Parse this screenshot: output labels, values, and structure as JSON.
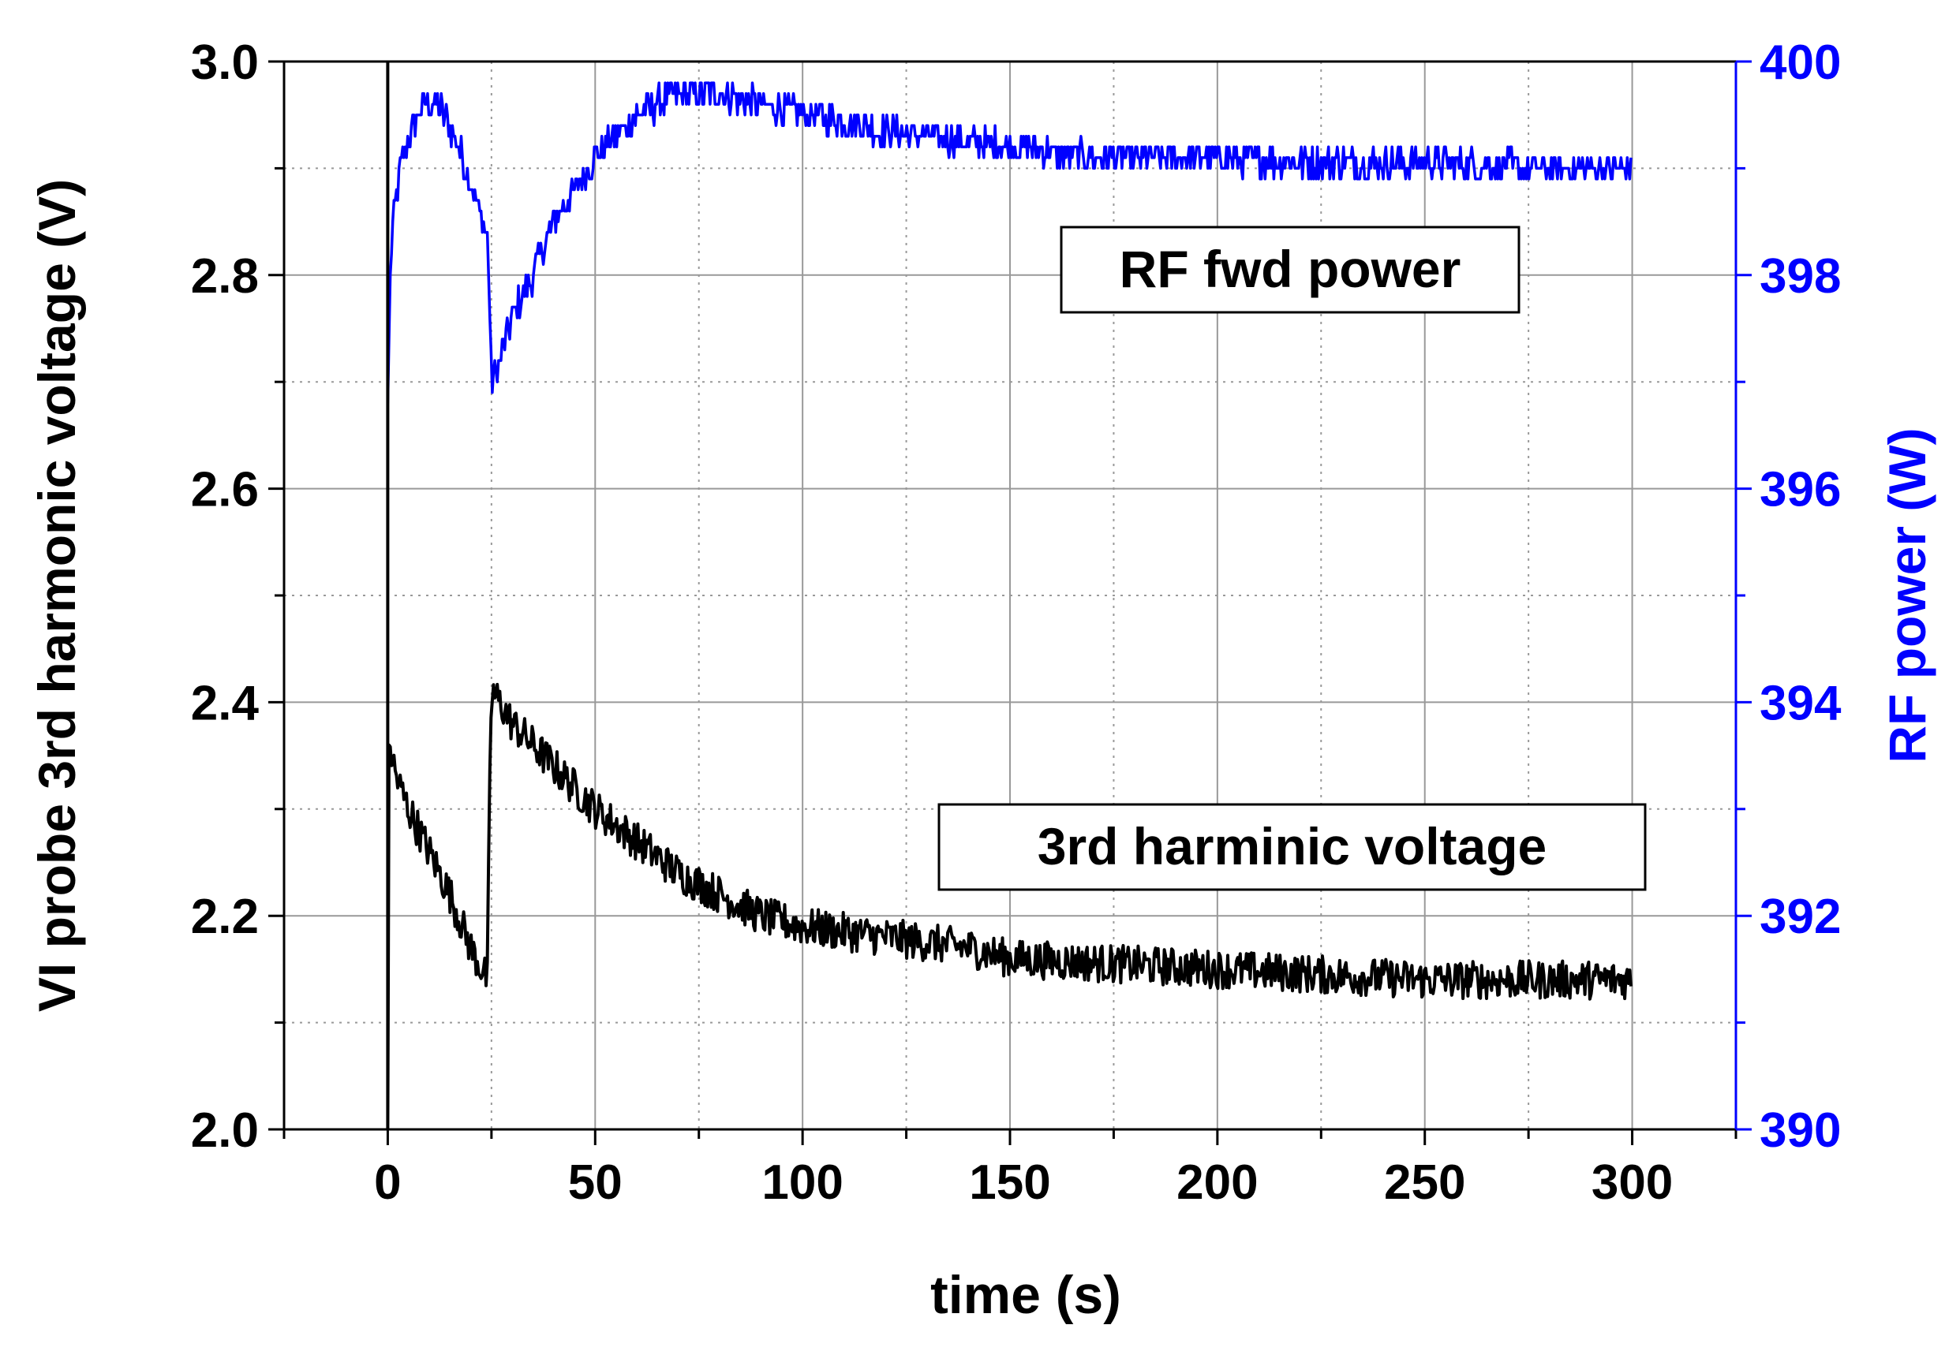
{
  "chart_data": {
    "type": "line",
    "xlabel": "time (s)",
    "ylabel_left": "VI probe 3rd harmonic voltage (V)",
    "ylabel_right": "RF power (W)",
    "xlim": [
      -25,
      325
    ],
    "ylim_left": [
      2.0,
      3.0
    ],
    "ylim_right": [
      390,
      400
    ],
    "x_ticks": [
      "0",
      "50",
      "100",
      "150",
      "200",
      "250",
      "300"
    ],
    "y_left_ticks": [
      "2.0",
      "2.2",
      "2.4",
      "2.6",
      "2.8",
      "3.0"
    ],
    "y_right_ticks": [
      "390",
      "392",
      "394",
      "396",
      "398",
      "400"
    ],
    "grid": true,
    "colors": {
      "voltage": "#000000",
      "power": "#0000ff",
      "axis_right": "#0000ff"
    },
    "series": [
      {
        "name": "RF fwd power",
        "axis": "right",
        "noise": 0.15,
        "x": [
          0,
          0.5,
          1,
          3,
          6,
          9,
          12,
          15,
          18,
          21,
          24,
          24.5,
          25,
          27,
          30,
          35,
          40,
          45,
          50,
          55,
          60,
          65,
          70,
          80,
          90,
          100,
          110,
          120,
          130,
          140,
          150,
          160,
          170,
          180,
          200,
          220,
          240,
          260,
          280,
          300
        ],
        "y": [
          396.8,
          397.8,
          398.4,
          399.0,
          399.4,
          399.6,
          399.6,
          399.4,
          399.1,
          398.7,
          398.4,
          397.8,
          397.0,
          397.2,
          397.6,
          398.0,
          398.5,
          398.8,
          399.1,
          399.3,
          399.5,
          399.6,
          399.7,
          399.7,
          399.6,
          399.5,
          399.45,
          399.35,
          399.3,
          399.25,
          399.2,
          399.15,
          399.1,
          399.1,
          399.1,
          399.05,
          399.05,
          399.05,
          399.0,
          399.0
        ]
      },
      {
        "name": "3rd harminic voltage",
        "axis": "left",
        "noise": 0.018,
        "x": [
          0,
          0.3,
          1,
          2,
          5,
          10,
          15,
          20,
          24,
          24.5,
          25,
          27,
          30,
          40,
          50,
          60,
          70,
          80,
          90,
          100,
          110,
          120,
          130,
          140,
          150,
          175,
          200,
          225,
          250,
          275,
          300
        ],
        "y": [
          2.0,
          2.36,
          2.35,
          2.33,
          2.3,
          2.26,
          2.22,
          2.17,
          2.14,
          2.3,
          2.41,
          2.4,
          2.38,
          2.34,
          2.3,
          2.27,
          2.24,
          2.22,
          2.2,
          2.19,
          2.185,
          2.18,
          2.175,
          2.17,
          2.16,
          2.155,
          2.15,
          2.145,
          2.14,
          2.14,
          2.14
        ]
      }
    ],
    "annotations": [
      {
        "text": "RF fwd power"
      },
      {
        "text": "3rd harminic voltage"
      }
    ]
  }
}
